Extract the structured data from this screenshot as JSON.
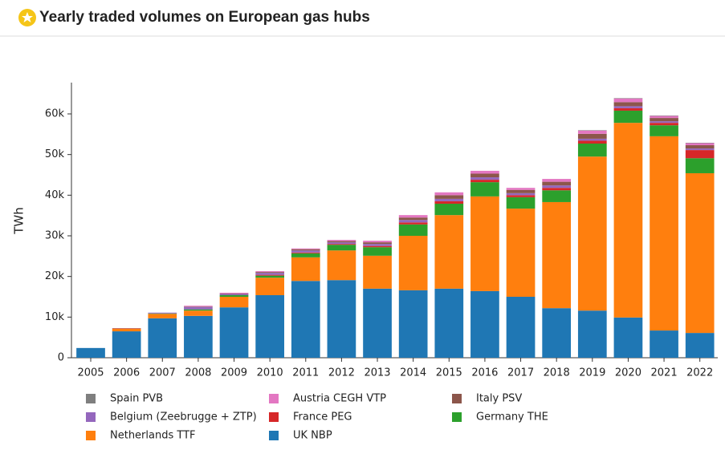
{
  "chart_data": {
    "type": "stacked_bar",
    "title": "Yearly traded volumes on European gas hubs",
    "y_label": "TWh",
    "categories": [
      "2005",
      "2006",
      "2007",
      "2008",
      "2009",
      "2010",
      "2011",
      "2012",
      "2013",
      "2014",
      "2015",
      "2016",
      "2017",
      "2018",
      "2019",
      "2020",
      "2021",
      "2022"
    ],
    "series": [
      {
        "name": "Spain PVB",
        "color": "#7f7f7f",
        "values": [
          0,
          0,
          0,
          0,
          0,
          0,
          0,
          0,
          0,
          0,
          0,
          0,
          0,
          0,
          100,
          100,
          100,
          100
        ]
      },
      {
        "name": "Austria CEGH VTP",
        "color": "#e377c2",
        "values": [
          0,
          0,
          0,
          200,
          200,
          200,
          200,
          300,
          400,
          600,
          700,
          700,
          500,
          700,
          800,
          900,
          500,
          500
        ]
      },
      {
        "name": "Italy PSV",
        "color": "#8c564b",
        "values": [
          0,
          0,
          0,
          100,
          100,
          200,
          300,
          300,
          400,
          600,
          900,
          900,
          800,
          900,
          1200,
          1000,
          800,
          800
        ]
      },
      {
        "name": "Belgium (Zeebrugge + ZTP)",
        "color": "#9467bd",
        "values": [
          0,
          100,
          200,
          600,
          300,
          500,
          500,
          400,
          500,
          600,
          600,
          600,
          500,
          600,
          500,
          500,
          400,
          400
        ]
      },
      {
        "name": "France PEG",
        "color": "#d62728",
        "values": [
          0,
          0,
          0,
          0,
          0,
          200,
          200,
          200,
          300,
          500,
          600,
          600,
          500,
          600,
          700,
          600,
          600,
          2000
        ]
      },
      {
        "name": "Germany THE",
        "color": "#2ca02c",
        "values": [
          0,
          0,
          100,
          300,
          400,
          500,
          1000,
          1400,
          2100,
          2800,
          2800,
          3500,
          2800,
          2900,
          3200,
          3000,
          2700,
          3700
        ]
      },
      {
        "name": "Netherlands TTF",
        "color": "#ff7f0e",
        "values": [
          0,
          700,
          1100,
          1300,
          2600,
          4300,
          5800,
          7300,
          8100,
          13400,
          18100,
          23300,
          21700,
          26100,
          37900,
          47900,
          47800,
          39300
        ]
      },
      {
        "name": "UK NBP",
        "color": "#1f77b4",
        "values": [
          2400,
          6500,
          9700,
          10300,
          12400,
          15400,
          18900,
          19100,
          17000,
          16600,
          17000,
          16400,
          15000,
          12200,
          11600,
          9900,
          6700,
          6100
        ]
      }
    ],
    "ylim": [
      0,
      67700
    ],
    "yticks": [
      0,
      {
        "value": 10000,
        "label": "10k"
      },
      {
        "value": 20000,
        "label": "20k"
      },
      {
        "value": 30000,
        "label": "30k"
      },
      {
        "value": 40000,
        "label": "40k"
      },
      {
        "value": 50000,
        "label": "50k"
      },
      {
        "value": 60000,
        "label": "60k"
      }
    ],
    "grid": false
  }
}
